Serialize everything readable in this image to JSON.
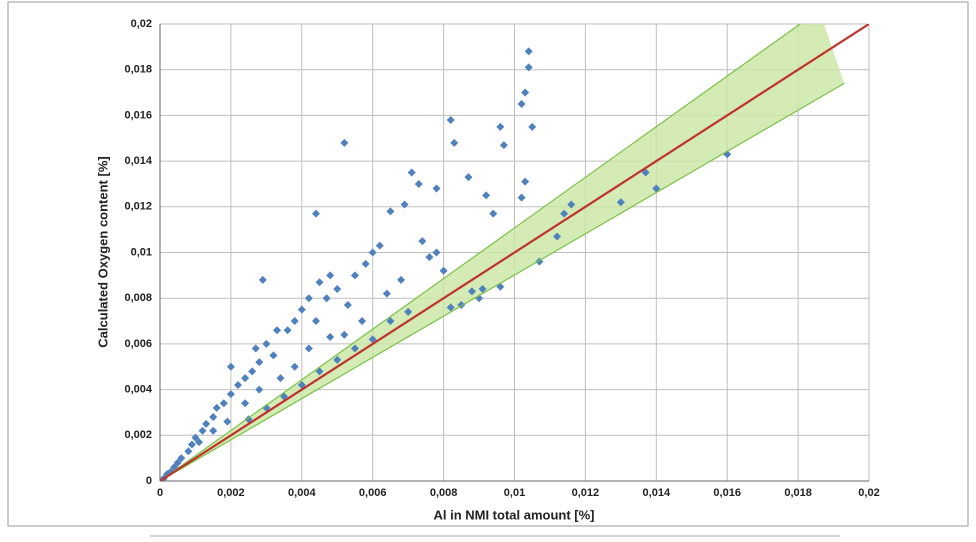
{
  "chart_data": {
    "type": "scatter",
    "x_label": "Al in NMI total amount [%]",
    "y_label": "Calculated Oxygen content [%]",
    "color": "#4f81bd",
    "x": [
      0.0104,
      0.0104,
      0.0103,
      0.0102,
      0.0105,
      0.0052,
      0.0082,
      0.0083,
      0.0096,
      0.0097,
      0.0044,
      0.0071,
      0.0073,
      0.0078,
      0.0069,
      0.0065,
      0.0087,
      0.0092,
      0.0094,
      0.0102,
      0.0103,
      0.0029,
      0.016,
      0.014,
      0.0137,
      0.013,
      0.0116,
      0.0114,
      0.0112,
      0.0107,
      0.0096,
      0.0091,
      0.0085,
      0.0082,
      0.0088,
      0.009,
      0.0078,
      0.008,
      0.0074,
      0.0076,
      0.0062,
      0.006,
      0.0058,
      0.0055,
      0.0048,
      0.0045,
      0.0047,
      0.005,
      0.0053,
      0.0042,
      0.004,
      0.0038,
      0.0036,
      0.0044,
      0.0033,
      0.003,
      0.0032,
      0.0028,
      0.0027,
      0.0026,
      0.0024,
      0.0022,
      0.002,
      0.002,
      0.0018,
      0.0016,
      0.0015,
      0.0013,
      0.0012,
      0.001,
      0.0009,
      0.0008,
      0.0006,
      0.0005,
      0.0004,
      0.0003,
      0.0002,
      0.0001,
      0.006,
      0.0055,
      0.005,
      0.0045,
      0.004,
      0.0035,
      0.003,
      0.0025,
      0.0065,
      0.007,
      0.0064,
      0.0068,
      0.0057,
      0.0052,
      0.0034,
      0.0038,
      0.0028,
      0.0015,
      0.0019,
      0.0011,
      0.0024,
      0.0042,
      0.0048
    ],
    "values": [
      0.0188,
      0.0181,
      0.017,
      0.0165,
      0.0155,
      0.0148,
      0.0158,
      0.0148,
      0.0155,
      0.0147,
      0.0117,
      0.0135,
      0.013,
      0.0128,
      0.0121,
      0.0118,
      0.0133,
      0.0125,
      0.0117,
      0.0124,
      0.0131,
      0.0088,
      0.0143,
      0.0128,
      0.0135,
      0.0122,
      0.0121,
      0.0117,
      0.0107,
      0.0096,
      0.0085,
      0.0084,
      0.0077,
      0.0076,
      0.0083,
      0.008,
      0.01,
      0.0092,
      0.0105,
      0.0098,
      0.0103,
      0.01,
      0.0095,
      0.009,
      0.009,
      0.0087,
      0.008,
      0.0084,
      0.0077,
      0.008,
      0.0075,
      0.007,
      0.0066,
      0.007,
      0.0066,
      0.006,
      0.0055,
      0.0052,
      0.0058,
      0.0048,
      0.0045,
      0.0042,
      0.005,
      0.0038,
      0.0034,
      0.0032,
      0.0028,
      0.0025,
      0.0022,
      0.0019,
      0.0016,
      0.0013,
      0.001,
      0.0008,
      0.0006,
      0.0004,
      0.0003,
      0.0001,
      0.0062,
      0.0058,
      0.0053,
      0.0048,
      0.0042,
      0.0037,
      0.0032,
      0.0027,
      0.007,
      0.0074,
      0.0082,
      0.0088,
      0.007,
      0.0064,
      0.0045,
      0.005,
      0.004,
      0.0022,
      0.0026,
      0.0017,
      0.0034,
      0.0058,
      0.0063
    ],
    "reference_line": {
      "color": "#c0312b",
      "x": [
        0,
        0.02
      ],
      "values": [
        0,
        0.02
      ]
    },
    "band": {
      "color": "#7ac143",
      "fill": "#c9e6a4",
      "upper": {
        "x": [
          0,
          0.0186
        ],
        "values": [
          0,
          0.0206
        ]
      },
      "lower": {
        "x": [
          0,
          0.0193
        ],
        "values": [
          0,
          0.0174
        ]
      }
    },
    "xlim": [
      0,
      0.02
    ],
    "ylim": [
      0,
      0.02
    ],
    "xticks": [
      0,
      {
        "value": 0.002,
        "label": "0,002"
      },
      {
        "value": 0.004,
        "label": "0,004"
      },
      {
        "value": 0.006,
        "label": "0,006"
      },
      {
        "value": 0.008,
        "label": "0,008"
      },
      {
        "value": 0.01,
        "label": "0,01"
      },
      {
        "value": 0.012,
        "label": "0,012"
      },
      {
        "value": 0.014,
        "label": "0,014"
      },
      {
        "value": 0.016,
        "label": "0,016"
      },
      {
        "value": 0.018,
        "label": "0,018"
      },
      {
        "value": 0.02,
        "label": "0,02"
      }
    ],
    "yticks": [
      0,
      {
        "value": 0.002,
        "label": "0,002"
      },
      {
        "value": 0.004,
        "label": "0,004"
      },
      {
        "value": 0.006,
        "label": "0,006"
      },
      {
        "value": 0.008,
        "label": "0,008"
      },
      {
        "value": 0.01,
        "label": "0,01"
      },
      {
        "value": 0.012,
        "label": "0,012"
      },
      {
        "value": 0.014,
        "label": "0,014"
      },
      {
        "value": 0.016,
        "label": "0,016"
      },
      {
        "value": 0.018,
        "label": "0,018"
      },
      {
        "value": 0.02,
        "label": "0,02"
      }
    ],
    "grid": true
  }
}
